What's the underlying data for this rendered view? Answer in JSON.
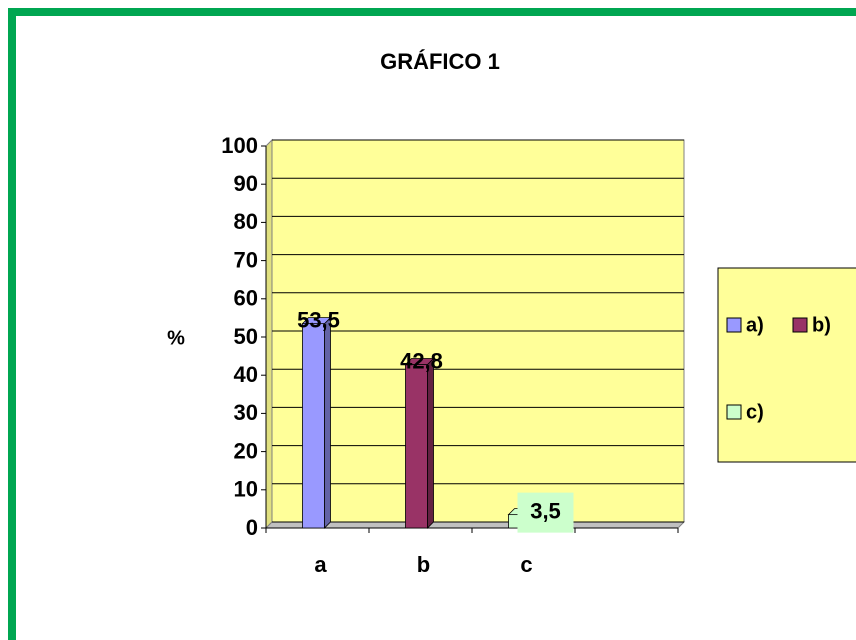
{
  "chart_data": {
    "type": "bar",
    "title": "GRÁFICO 1",
    "y_label": "%",
    "categories": [
      "a",
      "b",
      "c"
    ],
    "series": [
      {
        "name": "a)",
        "color": "#9999ff",
        "values": [
          53.5,
          null,
          null
        ],
        "value_labels": [
          "53,5",
          null,
          null
        ]
      },
      {
        "name": "b)",
        "color": "#993366",
        "values": [
          null,
          42.8,
          null
        ],
        "value_labels": [
          null,
          "42,8",
          null
        ]
      },
      {
        "name": "c)",
        "color": "#ccffcc",
        "values": [
          null,
          null,
          3.5
        ],
        "value_labels": [
          null,
          null,
          "3,5"
        ]
      }
    ],
    "ylim": [
      0,
      100
    ],
    "yticks": [
      0,
      10,
      20,
      30,
      40,
      50,
      60,
      70,
      80,
      90,
      100
    ],
    "grid": true,
    "legend": "right"
  }
}
